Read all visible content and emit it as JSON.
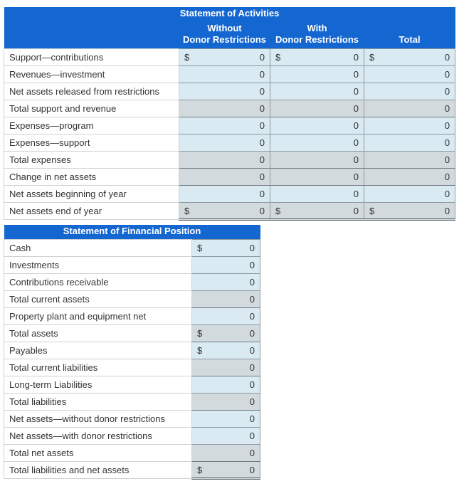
{
  "colors": {
    "header_bg": "#1467d1",
    "input_cell_bg": "#d9eaf2",
    "calc_cell_bg": "#d3dadd"
  },
  "activities": {
    "title": "Statement of Activities",
    "col_headers": [
      {
        "line1": "Without",
        "line2": "Donor Restrictions"
      },
      {
        "line1": "With",
        "line2": "Donor Restrictions"
      },
      {
        "line1": "",
        "line2": "Total"
      }
    ],
    "rows": [
      {
        "label": "Support—contributions",
        "type": "input",
        "cells": [
          {
            "sign": "$",
            "value": "0"
          },
          {
            "sign": "$",
            "value": "0"
          },
          {
            "sign": "$",
            "value": "0"
          }
        ]
      },
      {
        "label": "Revenues—investment",
        "type": "input",
        "cells": [
          {
            "sign": "",
            "value": "0"
          },
          {
            "sign": "",
            "value": "0"
          },
          {
            "sign": "",
            "value": "0"
          }
        ]
      },
      {
        "label": "Net assets released from restrictions",
        "type": "input",
        "cells": [
          {
            "sign": "",
            "value": "0"
          },
          {
            "sign": "",
            "value": "0"
          },
          {
            "sign": "",
            "value": "0"
          }
        ]
      },
      {
        "label": "Total support and revenue",
        "type": "calc",
        "cells": [
          {
            "sign": "",
            "value": "0"
          },
          {
            "sign": "",
            "value": "0"
          },
          {
            "sign": "",
            "value": "0"
          }
        ]
      },
      {
        "label": "Expenses—program",
        "type": "input",
        "cells": [
          {
            "sign": "",
            "value": "0"
          },
          {
            "sign": "",
            "value": "0"
          },
          {
            "sign": "",
            "value": "0"
          }
        ]
      },
      {
        "label": "Expenses—support",
        "type": "input",
        "cells": [
          {
            "sign": "",
            "value": "0"
          },
          {
            "sign": "",
            "value": "0"
          },
          {
            "sign": "",
            "value": "0"
          }
        ]
      },
      {
        "label": "Total expenses",
        "type": "calc",
        "cells": [
          {
            "sign": "",
            "value": "0"
          },
          {
            "sign": "",
            "value": "0"
          },
          {
            "sign": "",
            "value": "0"
          }
        ]
      },
      {
        "label": "Change in net assets",
        "type": "calc",
        "cells": [
          {
            "sign": "",
            "value": "0"
          },
          {
            "sign": "",
            "value": "0"
          },
          {
            "sign": "",
            "value": "0"
          }
        ]
      },
      {
        "label": "Net assets beginning of year",
        "type": "input",
        "cells": [
          {
            "sign": "",
            "value": "0"
          },
          {
            "sign": "",
            "value": "0"
          },
          {
            "sign": "",
            "value": "0"
          }
        ]
      },
      {
        "label": "Net assets end of year",
        "type": "calc",
        "cells": [
          {
            "sign": "$",
            "value": "0"
          },
          {
            "sign": "$",
            "value": "0"
          },
          {
            "sign": "$",
            "value": "0"
          }
        ]
      }
    ]
  },
  "financial_position": {
    "title": "Statement of Financial Position",
    "rows": [
      {
        "label": "Cash",
        "type": "input",
        "cells": [
          {
            "sign": "$",
            "value": "0"
          }
        ]
      },
      {
        "label": "Investments",
        "type": "input",
        "cells": [
          {
            "sign": "",
            "value": "0"
          }
        ]
      },
      {
        "label": "Contributions receivable",
        "type": "input",
        "cells": [
          {
            "sign": "",
            "value": "0"
          }
        ]
      },
      {
        "label": "Total current assets",
        "type": "calc",
        "cells": [
          {
            "sign": "",
            "value": "0"
          }
        ]
      },
      {
        "label": "Property plant and equipment net",
        "type": "input",
        "cells": [
          {
            "sign": "",
            "value": "0"
          }
        ]
      },
      {
        "label": "Total assets",
        "type": "calc",
        "cells": [
          {
            "sign": "$",
            "value": "0"
          }
        ]
      },
      {
        "label": "Payables",
        "type": "input",
        "cells": [
          {
            "sign": "$",
            "value": "0"
          }
        ]
      },
      {
        "label": "Total current liabilities",
        "type": "calc",
        "cells": [
          {
            "sign": "",
            "value": "0"
          }
        ]
      },
      {
        "label": "Long-term Liabilities",
        "type": "input",
        "cells": [
          {
            "sign": "",
            "value": "0"
          }
        ]
      },
      {
        "label": "Total liabilities",
        "type": "calc",
        "cells": [
          {
            "sign": "",
            "value": "0"
          }
        ]
      },
      {
        "label": "Net assets—without donor restrictions",
        "type": "input",
        "cells": [
          {
            "sign": "",
            "value": "0"
          }
        ]
      },
      {
        "label": "Net assets—with donor restrictions",
        "type": "input",
        "cells": [
          {
            "sign": "",
            "value": "0"
          }
        ]
      },
      {
        "label": "Total net assets",
        "type": "calc",
        "cells": [
          {
            "sign": "",
            "value": "0"
          }
        ]
      },
      {
        "label": "Total liabilities and net assets",
        "type": "calc",
        "cells": [
          {
            "sign": "$",
            "value": "0"
          }
        ]
      }
    ]
  }
}
